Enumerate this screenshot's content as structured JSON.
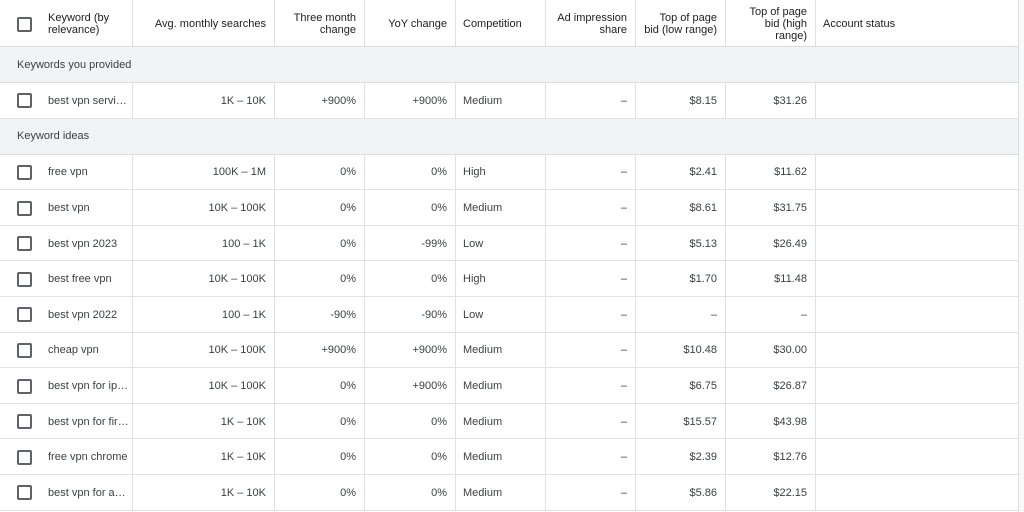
{
  "table": {
    "headers": [
      "Keyword (by relevance)",
      "Avg. monthly searches",
      "Three month change",
      "YoY change",
      "Competition",
      "Ad impression share",
      "Top of page bid (low range)",
      "Top of page bid (high range)",
      "Account status"
    ],
    "groups": [
      {
        "label": "Keywords you provided",
        "rows": [
          [
            "best vpn servi…",
            "1K – 10K",
            "+900%",
            "+900%",
            "Medium",
            "–",
            "$8.15",
            "$31.26"
          ]
        ]
      },
      {
        "label": "Keyword ideas",
        "rows": [
          [
            "free vpn",
            "100K – 1M",
            "0%",
            "0%",
            "High",
            "–",
            "$2.41",
            "$11.62"
          ],
          [
            "best vpn",
            "10K – 100K",
            "0%",
            "0%",
            "Medium",
            "–",
            "$8.61",
            "$31.75"
          ],
          [
            "best vpn 2023",
            "100 – 1K",
            "0%",
            "-99%",
            "Low",
            "–",
            "$5.13",
            "$26.49"
          ],
          [
            "best free vpn",
            "10K – 100K",
            "0%",
            "0%",
            "High",
            "–",
            "$1.70",
            "$11.48"
          ],
          [
            "best vpn 2022",
            "100 – 1K",
            "-90%",
            "-90%",
            "Low",
            "–",
            "–",
            "–"
          ],
          [
            "cheap vpn",
            "10K – 100K",
            "+900%",
            "+900%",
            "Medium",
            "–",
            "$10.48",
            "$30.00"
          ],
          [
            "best vpn for ip…",
            "10K – 100K",
            "0%",
            "+900%",
            "Medium",
            "–",
            "$6.75",
            "$26.87"
          ],
          [
            "best vpn for fir…",
            "1K – 10K",
            "0%",
            "0%",
            "Medium",
            "–",
            "$15.57",
            "$43.98"
          ],
          [
            "free vpn chrome",
            "1K – 10K",
            "0%",
            "0%",
            "Medium",
            "–",
            "$2.39",
            "$12.76"
          ],
          [
            "best vpn for a…",
            "1K – 10K",
            "0%",
            "0%",
            "Medium",
            "–",
            "$5.86",
            "$22.15"
          ]
        ]
      }
    ]
  }
}
